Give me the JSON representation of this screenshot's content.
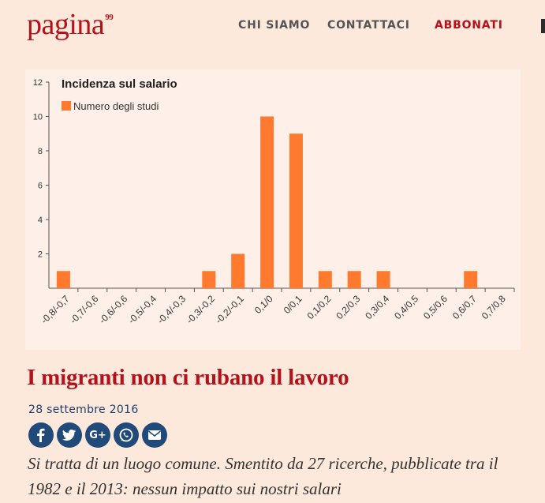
{
  "header": {
    "logo": "pagina",
    "logo_superscript": "99",
    "nav": [
      "CHI SIAMO",
      "CONTATTACI",
      "ABBONATI"
    ]
  },
  "chart_data": {
    "type": "bar",
    "title": "Incidenza sul salario",
    "legend": "Numero degli studi",
    "legend_placement": "top-left",
    "bar_color": "#ff7a2f",
    "categories": [
      "-0,8/-0,7",
      "-0,7/-0,6",
      "-0,6/-0,6",
      "-0,5/-0,4",
      "-0,4/-0,3",
      "-0,3/-0,2",
      "-0,2/-0,1",
      "0,1/0",
      "0/0,1",
      "0,1/0,2",
      "0,2/0,3",
      "0,3/0,4",
      "0,4/0,5",
      "0,5/0,6",
      "0,6/0,7",
      "0,7/0,8"
    ],
    "values": [
      1,
      0,
      0,
      0,
      0,
      1,
      2,
      10,
      9,
      1,
      1,
      1,
      0,
      0,
      1,
      0
    ],
    "y_ticks": [
      "2",
      "4",
      "6",
      "8",
      "10",
      "12"
    ],
    "ylim": [
      0,
      12
    ],
    "grid": false
  },
  "article": {
    "title": "I migranti non ci rubano il lavoro",
    "date": "28 settembre 2016",
    "lead": "Si tratta di un luogo comune. Smentito da 27 ricerche, pubblicate tra il 1982 e il 2013: nessun impatto sui nostri salari",
    "share": [
      "facebook-icon",
      "twitter-icon",
      "google-plus-icon",
      "whatsapp-icon",
      "email-icon"
    ],
    "share_labels": {
      "google_plus": "G+"
    }
  }
}
